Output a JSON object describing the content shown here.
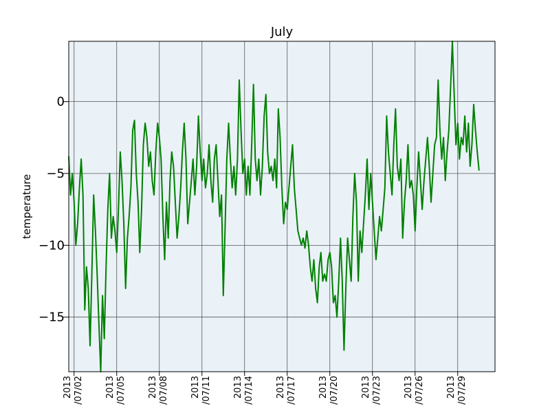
{
  "chart_data": {
    "type": "line",
    "title": "July",
    "xlabel": "",
    "ylabel": "temperature",
    "xlim": [
      "2013/07/01 15:00",
      "2013/07/31 15:00"
    ],
    "ylim": [
      -18.8,
      4.2
    ],
    "yticks": [
      0,
      -5,
      -10,
      -15
    ],
    "ytick_labels": [
      "0",
      "−5",
      "−10",
      "−15"
    ],
    "xticks": [
      {
        "date": "2013/07/02",
        "line1": "2013",
        "line2": "/07/02"
      },
      {
        "date": "2013/07/05",
        "line1": "2013",
        "line2": "/07/05"
      },
      {
        "date": "2013/07/08",
        "line1": "2013",
        "line2": "/07/08"
      },
      {
        "date": "2013/07/11",
        "line1": "2013",
        "line2": "/07/11"
      },
      {
        "date": "2013/07/14",
        "line1": "2013",
        "line2": "/07/14"
      },
      {
        "date": "2013/07/17",
        "line1": "2013",
        "line2": "/07/17"
      },
      {
        "date": "2013/07/20",
        "line1": "2013",
        "line2": "/07/20"
      },
      {
        "date": "2013/07/23",
        "line1": "2013",
        "line2": "/07/23"
      },
      {
        "date": "2013/07/26",
        "line1": "2013",
        "line2": "/07/26"
      },
      {
        "date": "2013/07/29",
        "line1": "2013",
        "line2": "/07/29"
      }
    ],
    "grid": true,
    "series": [
      {
        "color": "#008000",
        "points": [
          [
            "2013/07/01 15:00",
            -3.8
          ],
          [
            "2013/07/01 18:00",
            -6.5
          ],
          [
            "2013/07/01 21:00",
            -5.0
          ],
          [
            "2013/07/02 00:00",
            -7.0
          ],
          [
            "2013/07/02 03:00",
            -10.0
          ],
          [
            "2013/07/02 06:00",
            -8.5
          ],
          [
            "2013/07/02 09:00",
            -6.0
          ],
          [
            "2013/07/02 12:00",
            -4.0
          ],
          [
            "2013/07/02 15:00",
            -6.5
          ],
          [
            "2013/07/02 18:00",
            -14.5
          ],
          [
            "2013/07/02 21:00",
            -11.5
          ],
          [
            "2013/07/03 00:00",
            -13.0
          ],
          [
            "2013/07/03 03:00",
            -17.0
          ],
          [
            "2013/07/03 06:00",
            -12.0
          ],
          [
            "2013/07/03 09:00",
            -6.5
          ],
          [
            "2013/07/03 12:00",
            -9.0
          ],
          [
            "2013/07/03 15:00",
            -12.0
          ],
          [
            "2013/07/03 18:00",
            -15.5
          ],
          [
            "2013/07/03 21:00",
            -18.8
          ],
          [
            "2013/07/04 00:00",
            -13.5
          ],
          [
            "2013/07/04 03:00",
            -16.5
          ],
          [
            "2013/07/04 06:00",
            -11.5
          ],
          [
            "2013/07/04 09:00",
            -7.5
          ],
          [
            "2013/07/04 12:00",
            -5.0
          ],
          [
            "2013/07/04 15:00",
            -9.5
          ],
          [
            "2013/07/04 18:00",
            -8.0
          ],
          [
            "2013/07/04 21:00",
            -9.0
          ],
          [
            "2013/07/05 00:00",
            -10.5
          ],
          [
            "2013/07/05 03:00",
            -7.5
          ],
          [
            "2013/07/05 06:00",
            -3.5
          ],
          [
            "2013/07/05 09:00",
            -5.5
          ],
          [
            "2013/07/05 12:00",
            -8.5
          ],
          [
            "2013/07/05 15:00",
            -13.0
          ],
          [
            "2013/07/05 18:00",
            -9.5
          ],
          [
            "2013/07/05 21:00",
            -8.0
          ],
          [
            "2013/07/06 00:00",
            -6.0
          ],
          [
            "2013/07/06 03:00",
            -2.0
          ],
          [
            "2013/07/06 06:00",
            -1.3
          ],
          [
            "2013/07/06 09:00",
            -5.0
          ],
          [
            "2013/07/06 12:00",
            -7.0
          ],
          [
            "2013/07/06 15:00",
            -10.5
          ],
          [
            "2013/07/06 18:00",
            -7.5
          ],
          [
            "2013/07/06 21:00",
            -3.0
          ],
          [
            "2013/07/07 00:00",
            -1.5
          ],
          [
            "2013/07/07 03:00",
            -2.5
          ],
          [
            "2013/07/07 06:00",
            -4.5
          ],
          [
            "2013/07/07 09:00",
            -3.5
          ],
          [
            "2013/07/07 12:00",
            -5.5
          ],
          [
            "2013/07/07 15:00",
            -6.5
          ],
          [
            "2013/07/07 18:00",
            -3.5
          ],
          [
            "2013/07/07 21:00",
            -1.5
          ],
          [
            "2013/07/08 00:00",
            -2.5
          ],
          [
            "2013/07/08 03:00",
            -4.0
          ],
          [
            "2013/07/08 06:00",
            -8.0
          ],
          [
            "2013/07/08 09:00",
            -11.0
          ],
          [
            "2013/07/08 12:00",
            -7.0
          ],
          [
            "2013/07/08 15:00",
            -9.5
          ],
          [
            "2013/07/08 18:00",
            -5.5
          ],
          [
            "2013/07/08 21:00",
            -3.5
          ],
          [
            "2013/07/09 00:00",
            -4.5
          ],
          [
            "2013/07/09 03:00",
            -7.0
          ],
          [
            "2013/07/09 06:00",
            -9.5
          ],
          [
            "2013/07/09 09:00",
            -8.0
          ],
          [
            "2013/07/09 12:00",
            -6.0
          ],
          [
            "2013/07/09 15:00",
            -3.5
          ],
          [
            "2013/07/09 18:00",
            -1.5
          ],
          [
            "2013/07/09 21:00",
            -4.0
          ],
          [
            "2013/07/10 00:00",
            -8.5
          ],
          [
            "2013/07/10 03:00",
            -7.0
          ],
          [
            "2013/07/10 06:00",
            -5.5
          ],
          [
            "2013/07/10 09:00",
            -4.0
          ],
          [
            "2013/07/10 12:00",
            -6.5
          ],
          [
            "2013/07/10 15:00",
            -4.5
          ],
          [
            "2013/07/10 18:00",
            -1.0
          ],
          [
            "2013/07/10 21:00",
            -3.5
          ],
          [
            "2013/07/11 00:00",
            -5.5
          ],
          [
            "2013/07/11 03:00",
            -4.0
          ],
          [
            "2013/07/11 06:00",
            -6.0
          ],
          [
            "2013/07/11 09:00",
            -5.0
          ],
          [
            "2013/07/11 12:00",
            -3.0
          ],
          [
            "2013/07/11 15:00",
            -5.5
          ],
          [
            "2013/07/11 18:00",
            -7.0
          ],
          [
            "2013/07/11 21:00",
            -4.0
          ],
          [
            "2013/07/12 00:00",
            -3.0
          ],
          [
            "2013/07/12 03:00",
            -5.5
          ],
          [
            "2013/07/12 06:00",
            -8.0
          ],
          [
            "2013/07/12 09:00",
            -6.5
          ],
          [
            "2013/07/12 12:00",
            -13.5
          ],
          [
            "2013/07/12 15:00",
            -9.0
          ],
          [
            "2013/07/12 18:00",
            -4.0
          ],
          [
            "2013/07/12 21:00",
            -1.5
          ],
          [
            "2013/07/13 00:00",
            -4.0
          ],
          [
            "2013/07/13 03:00",
            -6.0
          ],
          [
            "2013/07/13 06:00",
            -4.5
          ],
          [
            "2013/07/13 09:00",
            -6.5
          ],
          [
            "2013/07/13 12:00",
            -4.0
          ],
          [
            "2013/07/13 15:00",
            1.5
          ],
          [
            "2013/07/13 18:00",
            -2.0
          ],
          [
            "2013/07/13 21:00",
            -5.0
          ],
          [
            "2013/07/14 00:00",
            -4.0
          ],
          [
            "2013/07/14 03:00",
            -6.5
          ],
          [
            "2013/07/14 06:00",
            -4.5
          ],
          [
            "2013/07/14 09:00",
            -6.5
          ],
          [
            "2013/07/14 12:00",
            -3.0
          ],
          [
            "2013/07/14 15:00",
            1.2
          ],
          [
            "2013/07/14 18:00",
            -4.0
          ],
          [
            "2013/07/14 21:00",
            -5.5
          ],
          [
            "2013/07/15 00:00",
            -4.0
          ],
          [
            "2013/07/15 03:00",
            -6.5
          ],
          [
            "2013/07/15 06:00",
            -4.5
          ],
          [
            "2013/07/15 09:00",
            -1.0
          ],
          [
            "2013/07/15 12:00",
            0.5
          ],
          [
            "2013/07/15 15:00",
            -3.5
          ],
          [
            "2013/07/15 18:00",
            -5.0
          ],
          [
            "2013/07/15 21:00",
            -4.5
          ],
          [
            "2013/07/16 00:00",
            -5.5
          ],
          [
            "2013/07/16 03:00",
            -4.0
          ],
          [
            "2013/07/16 06:00",
            -6.0
          ],
          [
            "2013/07/16 09:00",
            -0.5
          ],
          [
            "2013/07/16 12:00",
            -2.5
          ],
          [
            "2013/07/16 15:00",
            -6.0
          ],
          [
            "2013/07/16 18:00",
            -8.5
          ],
          [
            "2013/07/16 21:00",
            -7.0
          ],
          [
            "2013/07/17 00:00",
            -7.5
          ],
          [
            "2013/07/17 03:00",
            -6.0
          ],
          [
            "2013/07/17 06:00",
            -4.5
          ],
          [
            "2013/07/17 09:00",
            -3.0
          ],
          [
            "2013/07/17 12:00",
            -6.0
          ],
          [
            "2013/07/17 15:00",
            -7.5
          ],
          [
            "2013/07/17 18:00",
            -9.0
          ],
          [
            "2013/07/17 21:00",
            -9.5
          ],
          [
            "2013/07/18 00:00",
            -10.0
          ],
          [
            "2013/07/18 03:00",
            -9.5
          ],
          [
            "2013/07/18 06:00",
            -10.2
          ],
          [
            "2013/07/18 09:00",
            -9.0
          ],
          [
            "2013/07/18 12:00",
            -10.0
          ],
          [
            "2013/07/18 15:00",
            -11.5
          ],
          [
            "2013/07/18 18:00",
            -12.5
          ],
          [
            "2013/07/18 21:00",
            -11.0
          ],
          [
            "2013/07/19 00:00",
            -13.0
          ],
          [
            "2013/07/19 03:00",
            -14.0
          ],
          [
            "2013/07/19 06:00",
            -11.5
          ],
          [
            "2013/07/19 09:00",
            -10.5
          ],
          [
            "2013/07/19 12:00",
            -12.5
          ],
          [
            "2013/07/19 15:00",
            -12.0
          ],
          [
            "2013/07/19 18:00",
            -12.5
          ],
          [
            "2013/07/19 21:00",
            -11.0
          ],
          [
            "2013/07/20 00:00",
            -10.5
          ],
          [
            "2013/07/20 03:00",
            -11.5
          ],
          [
            "2013/07/20 06:00",
            -14.0
          ],
          [
            "2013/07/20 09:00",
            -13.5
          ],
          [
            "2013/07/20 12:00",
            -15.0
          ],
          [
            "2013/07/20 15:00",
            -12.5
          ],
          [
            "2013/07/20 18:00",
            -9.5
          ],
          [
            "2013/07/20 21:00",
            -12.5
          ],
          [
            "2013/07/21 00:00",
            -17.3
          ],
          [
            "2013/07/21 03:00",
            -13.0
          ],
          [
            "2013/07/21 06:00",
            -9.5
          ],
          [
            "2013/07/21 09:00",
            -11.0
          ],
          [
            "2013/07/21 12:00",
            -12.5
          ],
          [
            "2013/07/21 15:00",
            -8.0
          ],
          [
            "2013/07/21 18:00",
            -5.0
          ],
          [
            "2013/07/21 21:00",
            -7.0
          ],
          [
            "2013/07/22 00:00",
            -12.5
          ],
          [
            "2013/07/22 03:00",
            -9.0
          ],
          [
            "2013/07/22 06:00",
            -10.5
          ],
          [
            "2013/07/22 09:00",
            -8.5
          ],
          [
            "2013/07/22 12:00",
            -6.5
          ],
          [
            "2013/07/22 15:00",
            -4.0
          ],
          [
            "2013/07/22 18:00",
            -7.5
          ],
          [
            "2013/07/22 21:00",
            -5.0
          ],
          [
            "2013/07/23 00:00",
            -7.0
          ],
          [
            "2013/07/23 03:00",
            -9.0
          ],
          [
            "2013/07/23 06:00",
            -11.0
          ],
          [
            "2013/07/23 09:00",
            -9.5
          ],
          [
            "2013/07/23 12:00",
            -8.0
          ],
          [
            "2013/07/23 15:00",
            -9.0
          ],
          [
            "2013/07/23 18:00",
            -7.5
          ],
          [
            "2013/07/23 21:00",
            -6.0
          ],
          [
            "2013/07/24 00:00",
            -1.0
          ],
          [
            "2013/07/24 03:00",
            -3.5
          ],
          [
            "2013/07/24 06:00",
            -5.0
          ],
          [
            "2013/07/24 09:00",
            -6.5
          ],
          [
            "2013/07/24 12:00",
            -3.0
          ],
          [
            "2013/07/24 15:00",
            -0.5
          ],
          [
            "2013/07/24 18:00",
            -4.5
          ],
          [
            "2013/07/24 21:00",
            -5.5
          ],
          [
            "2013/07/25 00:00",
            -4.0
          ],
          [
            "2013/07/25 03:00",
            -9.5
          ],
          [
            "2013/07/25 06:00",
            -7.0
          ],
          [
            "2013/07/25 09:00",
            -5.5
          ],
          [
            "2013/07/25 12:00",
            -3.0
          ],
          [
            "2013/07/25 15:00",
            -6.0
          ],
          [
            "2013/07/25 18:00",
            -5.5
          ],
          [
            "2013/07/25 21:00",
            -6.5
          ],
          [
            "2013/07/26 00:00",
            -9.0
          ],
          [
            "2013/07/26 03:00",
            -6.0
          ],
          [
            "2013/07/26 06:00",
            -3.5
          ],
          [
            "2013/07/26 09:00",
            -5.5
          ],
          [
            "2013/07/26 12:00",
            -7.5
          ],
          [
            "2013/07/26 15:00",
            -5.5
          ],
          [
            "2013/07/26 18:00",
            -4.0
          ],
          [
            "2013/07/26 21:00",
            -2.5
          ],
          [
            "2013/07/27 00:00",
            -4.5
          ],
          [
            "2013/07/27 03:00",
            -7.0
          ],
          [
            "2013/07/27 06:00",
            -5.0
          ],
          [
            "2013/07/27 09:00",
            -3.0
          ],
          [
            "2013/07/27 12:00",
            -2.5
          ],
          [
            "2013/07/27 15:00",
            1.5
          ],
          [
            "2013/07/27 18:00",
            -2.0
          ],
          [
            "2013/07/27 21:00",
            -4.0
          ],
          [
            "2013/07/28 00:00",
            -2.5
          ],
          [
            "2013/07/28 03:00",
            -5.5
          ],
          [
            "2013/07/28 06:00",
            -3.5
          ],
          [
            "2013/07/28 09:00",
            -2.0
          ],
          [
            "2013/07/28 12:00",
            1.0
          ],
          [
            "2013/07/28 15:00",
            4.2
          ],
          [
            "2013/07/28 18:00",
            0.5
          ],
          [
            "2013/07/28 21:00",
            -3.0
          ],
          [
            "2013/07/29 00:00",
            -1.5
          ],
          [
            "2013/07/29 03:00",
            -4.0
          ],
          [
            "2013/07/29 06:00",
            -2.5
          ],
          [
            "2013/07/29 09:00",
            -3.0
          ],
          [
            "2013/07/29 12:00",
            -1.0
          ],
          [
            "2013/07/29 15:00",
            -3.5
          ],
          [
            "2013/07/29 18:00",
            -1.5
          ],
          [
            "2013/07/29 21:00",
            -4.5
          ],
          [
            "2013/07/30 00:00",
            -3.0
          ],
          [
            "2013/07/30 03:00",
            -0.2
          ],
          [
            "2013/07/30 06:00",
            -2.0
          ],
          [
            "2013/07/30 09:00",
            -3.5
          ],
          [
            "2013/07/30 12:00",
            -4.8
          ]
        ]
      }
    ]
  }
}
